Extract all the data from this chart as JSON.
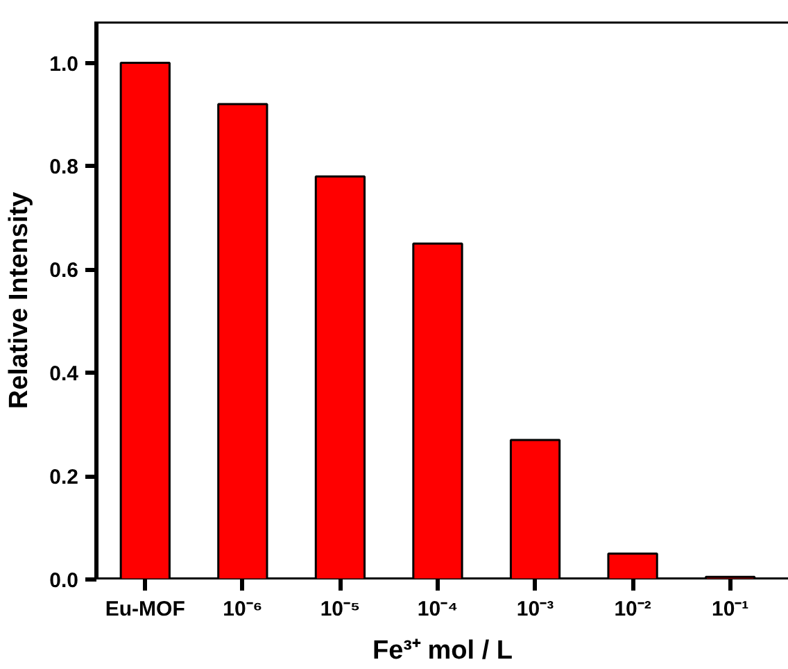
{
  "chart_data": {
    "type": "bar",
    "xlabel": "Fe³⁺ mol / L",
    "ylabel": "Relative Intensity",
    "categories": [
      "Eu-MOF",
      "10⁻⁶",
      "10⁻⁵",
      "10⁻⁴",
      "10⁻³",
      "10⁻²",
      "10⁻¹"
    ],
    "values": [
      1.0,
      0.92,
      0.78,
      0.65,
      0.27,
      0.05,
      0.005
    ],
    "color": "#ff0000",
    "ylim": [
      0,
      1.08
    ],
    "yticks": [
      {
        "value": 0,
        "label": "0.0"
      },
      0.2,
      0.4,
      0.6,
      0.8,
      {
        "value": 1,
        "label": "1.0"
      }
    ],
    "grid": false
  }
}
